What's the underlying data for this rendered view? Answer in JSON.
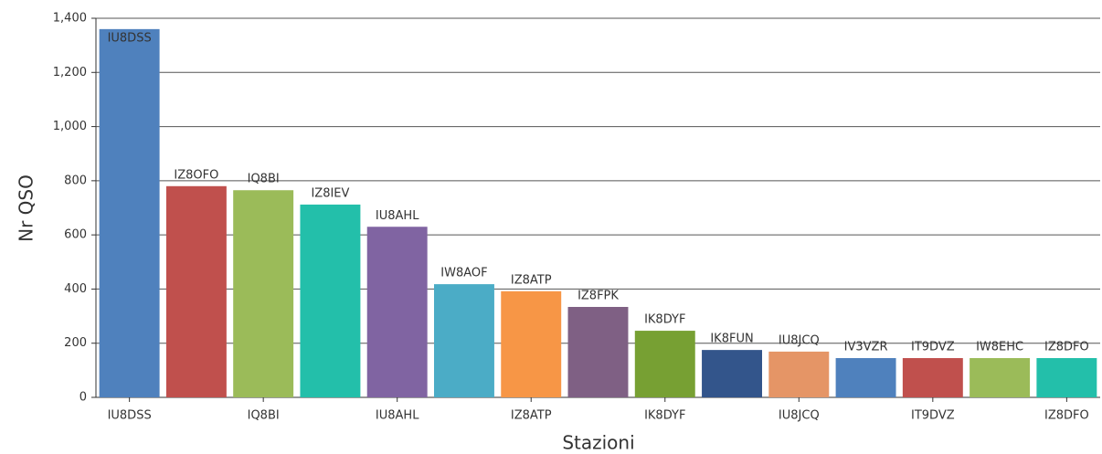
{
  "chart_data": {
    "type": "bar",
    "xlabel": "Stazioni",
    "ylabel": "Nr QSO",
    "categories": [
      "IU8DSS",
      "IZ8OFO",
      "IQ8BI",
      "IZ8IEV",
      "IU8AHL",
      "IW8AOF",
      "IZ8ATP",
      "IZ8FPK",
      "IK8DYF",
      "IK8FUN",
      "IU8JCQ",
      "IV3VZR",
      "IT9DVZ",
      "IW8EHC",
      "IZ8DFO"
    ],
    "values": [
      1360,
      780,
      765,
      712,
      630,
      418,
      392,
      334,
      246,
      175,
      169,
      145,
      145,
      145,
      145
    ],
    "colors": [
      "#4f81bd",
      "#c0504d",
      "#9bbb59",
      "#23bfaa",
      "#8064a2",
      "#4bacc6",
      "#f79646",
      "#7f6084",
      "#77a033",
      "#33558b",
      "#e59566",
      "#4f81bd",
      "#c0504d",
      "#9bbb59",
      "#23bfaa"
    ],
    "ylim": [
      0,
      1400
    ],
    "yticks": [
      0,
      200,
      400,
      600,
      800,
      {
        "value": 1000,
        "label": "1,000"
      },
      {
        "value": 1200,
        "label": "1,200"
      },
      {
        "value": 1400,
        "label": "1,400"
      }
    ],
    "grid": true
  }
}
